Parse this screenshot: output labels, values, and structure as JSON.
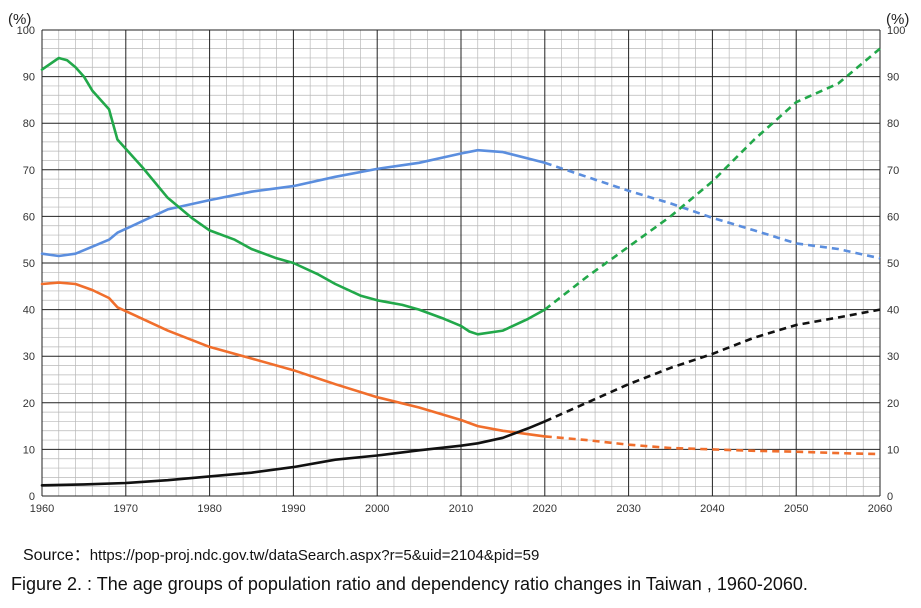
{
  "figure": {
    "source_label": "Source：",
    "source_url": "https://pop-proj.ndc.gov.tw/dataSearch.aspx?r=5&uid=2104&pid=59",
    "caption": "Figure 2. : The age groups of population ratio and dependency ratio changes in Taiwan , 1960-2060."
  },
  "chart_data": {
    "type": "line",
    "title": "",
    "xlabel": "",
    "ylabel": "(%)",
    "ylabel_right": "(%)",
    "xlim": [
      1960,
      2060
    ],
    "ylim": [
      0,
      100
    ],
    "x_ticks": [
      1960,
      1970,
      1980,
      1990,
      2000,
      2010,
      2020,
      2030,
      2040,
      2050,
      2060
    ],
    "y_ticks": [
      0,
      10,
      20,
      30,
      40,
      50,
      60,
      70,
      80,
      90,
      100
    ],
    "grid": true,
    "legend": "none",
    "projection_start": 2020,
    "series": [
      {
        "color": "#5b8ede",
        "x": [
          1960,
          1962,
          1964,
          1966,
          1968,
          1969,
          1972,
          1975,
          1980,
          1985,
          1990,
          1995,
          2000,
          2005,
          2010,
          2012,
          2015,
          2020,
          2025,
          2030,
          2035,
          2040,
          2045,
          2050,
          2055,
          2060
        ],
        "values": [
          52,
          51.5,
          52,
          53.5,
          55,
          56.5,
          59,
          61.5,
          63.5,
          65.3,
          66.5,
          68.5,
          70.2,
          71.5,
          73.5,
          74.2,
          73.8,
          71.5,
          68.5,
          65.5,
          62.8,
          59.7,
          57,
          54.2,
          53,
          51
        ]
      },
      {
        "color": "#22a84a",
        "x": [
          1960,
          1962,
          1963,
          1964,
          1965,
          1966,
          1968,
          1969,
          1972,
          1975,
          1978,
          1980,
          1983,
          1985,
          1988,
          1990,
          1993,
          1995,
          1998,
          2000,
          2003,
          2005,
          2008,
          2010,
          2011,
          2012,
          2015,
          2018,
          2020,
          2025,
          2030,
          2035,
          2040,
          2045,
          2050,
          2055,
          2060
        ],
        "values": [
          91.5,
          94,
          93.5,
          92,
          90,
          87,
          83,
          76.5,
          70.5,
          64,
          59.5,
          57,
          55,
          53,
          51,
          50,
          47.5,
          45.5,
          43,
          42,
          41,
          40,
          38,
          36.5,
          35.3,
          34.7,
          35.5,
          38,
          40,
          47,
          53.5,
          60,
          67.5,
          76.5,
          84.5,
          88.5,
          96
        ]
      },
      {
        "color": "#f06e2c",
        "x": [
          1960,
          1962,
          1964,
          1966,
          1968,
          1969,
          1972,
          1975,
          1980,
          1985,
          1990,
          1995,
          2000,
          2005,
          2010,
          2012,
          2015,
          2020,
          2025,
          2030,
          2035,
          2040,
          2045,
          2050,
          2055,
          2060
        ],
        "values": [
          45.5,
          45.8,
          45.5,
          44.2,
          42.5,
          40.5,
          38,
          35.5,
          32,
          29.5,
          27,
          24,
          21.2,
          19,
          16.3,
          15,
          14,
          12.8,
          12,
          11,
          10.3,
          10,
          9.7,
          9.5,
          9.2,
          9
        ]
      },
      {
        "color": "#111111",
        "x": [
          1960,
          1965,
          1970,
          1975,
          1980,
          1985,
          1990,
          1995,
          2000,
          2005,
          2010,
          2012,
          2015,
          2018,
          2020,
          2025,
          2030,
          2035,
          2040,
          2045,
          2050,
          2055,
          2060
        ],
        "values": [
          2.3,
          2.5,
          2.8,
          3.4,
          4.2,
          5,
          6.2,
          7.8,
          8.7,
          9.8,
          10.8,
          11.3,
          12.5,
          14.5,
          16,
          20,
          24,
          27.5,
          30.5,
          34,
          36.7,
          38.3,
          40
        ]
      }
    ]
  }
}
